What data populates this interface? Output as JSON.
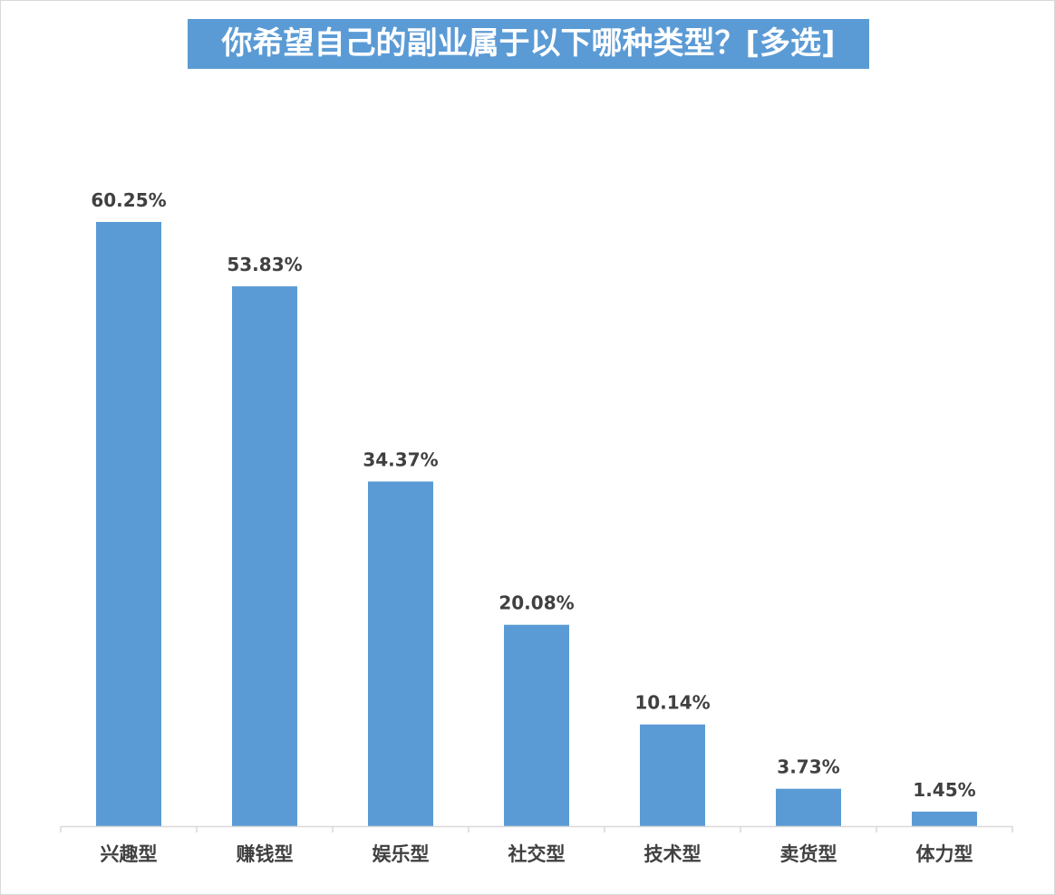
{
  "chart_data": {
    "type": "bar",
    "title": "你希望自己的副业属于以下哪种类型？[多选]",
    "categories": [
      "兴趣型",
      "赚钱型",
      "娱乐型",
      "社交型",
      "技术型",
      "卖货型",
      "体力型"
    ],
    "values": [
      60.25,
      53.83,
      34.37,
      20.08,
      10.14,
      3.73,
      1.45
    ],
    "data_labels": [
      "60.25%",
      "53.83%",
      "34.37%",
      "20.08%",
      "10.14%",
      "3.73%",
      "1.45%"
    ],
    "xlabel": "",
    "ylabel": "",
    "ylim": [
      0,
      70
    ],
    "grid": false,
    "legend": "none",
    "bar_color": "#5b9bd5",
    "title_background": "#5b9bd5",
    "title_color": "#ffffff",
    "label_color": "#404040",
    "axis_color": "#d9d9d9"
  }
}
